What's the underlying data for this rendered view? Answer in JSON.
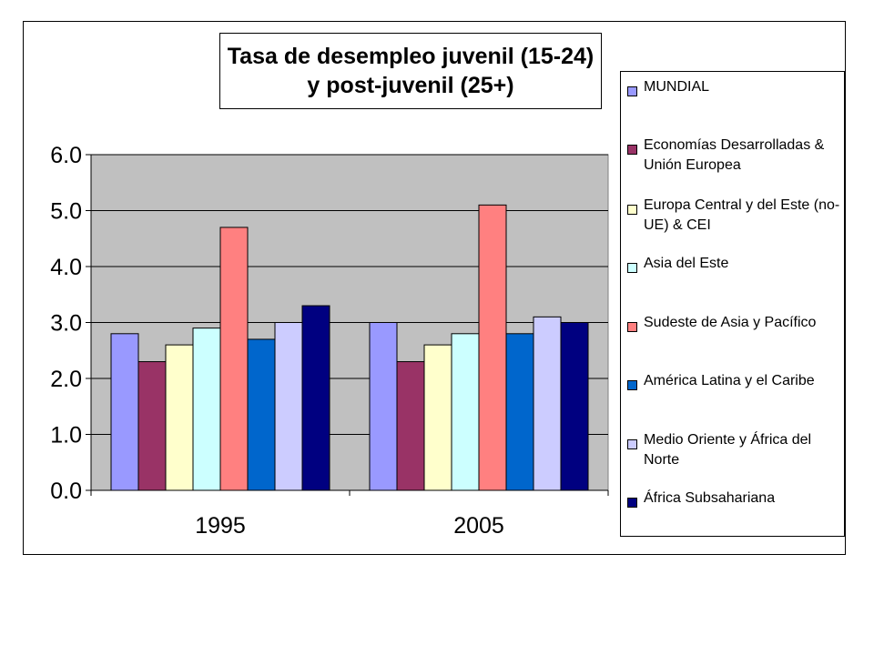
{
  "chart_data": {
    "type": "bar",
    "title_lines": [
      "Tasa de desempleo juvenil (15-24)",
      "y post-juvenil (25+)"
    ],
    "xlabel": "",
    "ylabel": "",
    "categories": [
      "1995",
      "2005"
    ],
    "ylim": [
      0,
      6
    ],
    "yticks": [
      "0.0",
      "1.0",
      "2.0",
      "3.0",
      "4.0",
      "5.0",
      "6.0"
    ],
    "grid": true,
    "legend_position": "right",
    "plot_background": "#c0c0c0",
    "series": [
      {
        "name": "MUNDIAL",
        "color": "#9999ff",
        "values": [
          2.8,
          3.0
        ]
      },
      {
        "name": "Economías Desarrolladas & Unión Europea",
        "color": "#993366",
        "values": [
          2.3,
          2.3
        ]
      },
      {
        "name": "Europa Central y del Este (no-UE) & CEI",
        "color": "#ffffcc",
        "values": [
          2.6,
          2.6
        ]
      },
      {
        "name": "Asia del Este",
        "color": "#ccffff",
        "values": [
          2.9,
          2.8
        ]
      },
      {
        "name": "Sudeste de Asia y Pacífico",
        "color": "#ff8080",
        "values": [
          4.7,
          5.1
        ]
      },
      {
        "name": "América Latina y el Caribe",
        "color": "#0066cc",
        "values": [
          2.7,
          2.8
        ]
      },
      {
        "name": "Medio Oriente y África del Norte",
        "color": "#ccccff",
        "values": [
          3.0,
          3.1
        ]
      },
      {
        "name": "África Subsahariana",
        "color": "#000080",
        "values": [
          3.3,
          3.0
        ]
      }
    ]
  }
}
